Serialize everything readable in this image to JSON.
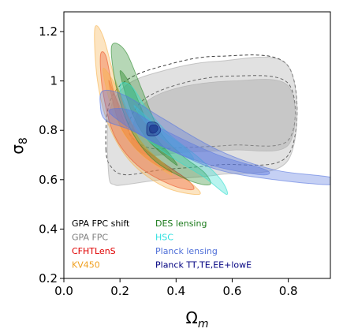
{
  "chart_data": {
    "type": "contour",
    "xlabel": "Ω",
    "xlabel_sub": "m",
    "ylabel": "σ",
    "ylabel_sub": "8",
    "xlim": [
      0.0,
      0.95
    ],
    "ylim": [
      0.2,
      1.28
    ],
    "xticks": [
      0.0,
      0.2,
      0.4,
      0.6,
      0.8
    ],
    "xtick_labels": [
      "0.0",
      "0.2",
      "0.4",
      "0.6",
      "0.8"
    ],
    "yticks": [
      0.2,
      0.4,
      0.6,
      0.8,
      1.0,
      1.2
    ],
    "ytick_labels": [
      "0.2",
      "0.4",
      "0.6",
      "0.8",
      "1",
      "1.2"
    ],
    "grid": false,
    "legend_position": "bottom-left",
    "series": [
      {
        "name": "GPA FPC shift",
        "color": "#000000",
        "style": "dashed",
        "outer": [
          [
            0.15,
            0.72
          ],
          [
            0.16,
            0.9
          ],
          [
            0.22,
            1.0
          ],
          [
            0.35,
            1.06
          ],
          [
            0.55,
            1.1
          ],
          [
            0.8,
            1.06
          ],
          [
            0.8,
            0.7
          ],
          [
            0.55,
            0.66
          ],
          [
            0.35,
            0.64
          ],
          [
            0.22,
            0.62
          ],
          [
            0.17,
            0.65
          ]
        ],
        "inner": [
          [
            0.23,
            0.8
          ],
          [
            0.28,
            0.92
          ],
          [
            0.42,
            0.99
          ],
          [
            0.6,
            1.02
          ],
          [
            0.8,
            0.99
          ],
          [
            0.8,
            0.76
          ],
          [
            0.6,
            0.74
          ],
          [
            0.42,
            0.73
          ],
          [
            0.3,
            0.73
          ]
        ]
      },
      {
        "name": "GPA FPC",
        "color": "#a8a8a8",
        "style": "filled",
        "outer": [
          [
            0.16,
            0.62
          ],
          [
            0.16,
            0.86
          ],
          [
            0.22,
            0.98
          ],
          [
            0.35,
            1.04
          ],
          [
            0.55,
            1.08
          ],
          [
            0.8,
            1.06
          ],
          [
            0.8,
            0.68
          ],
          [
            0.55,
            0.62
          ],
          [
            0.35,
            0.6
          ],
          [
            0.22,
            0.58
          ],
          [
            0.18,
            0.58
          ]
        ],
        "inner": [
          [
            0.24,
            0.76
          ],
          [
            0.28,
            0.9
          ],
          [
            0.4,
            0.97
          ],
          [
            0.6,
            1.0
          ],
          [
            0.8,
            0.98
          ],
          [
            0.8,
            0.74
          ],
          [
            0.6,
            0.72
          ],
          [
            0.42,
            0.71
          ],
          [
            0.3,
            0.7
          ]
        ]
      },
      {
        "name": "CFHTLenS",
        "color": "#e8261b",
        "style": "filled",
        "outer": [
          [
            0.13,
            1.1
          ],
          [
            0.14,
            0.95
          ],
          [
            0.18,
            0.78
          ],
          [
            0.26,
            0.66
          ],
          [
            0.38,
            0.58
          ],
          [
            0.46,
            0.56
          ],
          [
            0.44,
            0.6
          ],
          [
            0.34,
            0.68
          ],
          [
            0.24,
            0.78
          ],
          [
            0.18,
            0.95
          ],
          [
            0.15,
            1.1
          ]
        ],
        "inner": [
          [
            0.16,
            1.0
          ],
          [
            0.2,
            0.82
          ],
          [
            0.28,
            0.7
          ],
          [
            0.38,
            0.63
          ],
          [
            0.36,
            0.66
          ],
          [
            0.26,
            0.76
          ],
          [
            0.19,
            0.92
          ]
        ]
      },
      {
        "name": "KV450",
        "color": "#f7b24c",
        "style": "filled",
        "outer": [
          [
            0.11,
            1.21
          ],
          [
            0.12,
            1.0
          ],
          [
            0.16,
            0.82
          ],
          [
            0.24,
            0.67
          ],
          [
            0.36,
            0.57
          ],
          [
            0.48,
            0.54
          ],
          [
            0.46,
            0.58
          ],
          [
            0.36,
            0.66
          ],
          [
            0.26,
            0.78
          ],
          [
            0.19,
            0.98
          ],
          [
            0.14,
            1.18
          ]
        ],
        "inner": [
          [
            0.14,
            1.05
          ],
          [
            0.18,
            0.86
          ],
          [
            0.26,
            0.72
          ],
          [
            0.38,
            0.62
          ],
          [
            0.36,
            0.66
          ],
          [
            0.27,
            0.76
          ],
          [
            0.2,
            0.95
          ]
        ]
      },
      {
        "name": "DES lensing",
        "color": "#2e8b2e",
        "style": "filled",
        "outer": [
          [
            0.17,
            1.14
          ],
          [
            0.19,
            0.96
          ],
          [
            0.24,
            0.8
          ],
          [
            0.32,
            0.68
          ],
          [
            0.44,
            0.6
          ],
          [
            0.52,
            0.58
          ],
          [
            0.5,
            0.63
          ],
          [
            0.42,
            0.7
          ],
          [
            0.34,
            0.8
          ],
          [
            0.28,
            0.96
          ],
          [
            0.22,
            1.12
          ]
        ],
        "inner": [
          [
            0.2,
            1.04
          ],
          [
            0.24,
            0.88
          ],
          [
            0.3,
            0.76
          ],
          [
            0.4,
            0.66
          ],
          [
            0.38,
            0.7
          ],
          [
            0.31,
            0.8
          ],
          [
            0.25,
            0.96
          ]
        ]
      },
      {
        "name": "HSC",
        "color": "#33e0d0",
        "style": "filled",
        "outer": [
          [
            0.2,
            0.98
          ],
          [
            0.23,
            0.86
          ],
          [
            0.3,
            0.76
          ],
          [
            0.4,
            0.68
          ],
          [
            0.5,
            0.61
          ],
          [
            0.58,
            0.54
          ],
          [
            0.56,
            0.6
          ],
          [
            0.48,
            0.69
          ],
          [
            0.38,
            0.78
          ],
          [
            0.3,
            0.88
          ],
          [
            0.24,
            0.98
          ]
        ],
        "inner": [
          [
            0.25,
            0.9
          ],
          [
            0.3,
            0.82
          ],
          [
            0.38,
            0.74
          ],
          [
            0.46,
            0.68
          ],
          [
            0.44,
            0.72
          ],
          [
            0.36,
            0.79
          ],
          [
            0.29,
            0.86
          ]
        ]
      },
      {
        "name": "Planck lensing",
        "color": "#5a78e0",
        "style": "filled",
        "outer": [
          [
            0.13,
            0.9
          ],
          [
            0.14,
            0.96
          ],
          [
            0.22,
            0.94
          ],
          [
            0.35,
            0.85
          ],
          [
            0.55,
            0.72
          ],
          [
            0.75,
            0.64
          ],
          [
            0.95,
            0.61
          ],
          [
            0.95,
            0.58
          ],
          [
            0.75,
            0.6
          ],
          [
            0.55,
            0.64
          ],
          [
            0.38,
            0.72
          ],
          [
            0.24,
            0.8
          ],
          [
            0.15,
            0.84
          ]
        ],
        "inner": [
          [
            0.16,
            0.88
          ],
          [
            0.24,
            0.88
          ],
          [
            0.36,
            0.8
          ],
          [
            0.55,
            0.7
          ],
          [
            0.72,
            0.64
          ],
          [
            0.7,
            0.62
          ],
          [
            0.52,
            0.66
          ],
          [
            0.34,
            0.74
          ],
          [
            0.22,
            0.82
          ]
        ]
      },
      {
        "name": "Planck TT,TE,EE+lowE",
        "color": "#0a1a78",
        "style": "filled",
        "outer": [
          [
            0.295,
            0.8
          ],
          [
            0.3,
            0.83
          ],
          [
            0.33,
            0.83
          ],
          [
            0.345,
            0.8
          ],
          [
            0.33,
            0.78
          ],
          [
            0.3,
            0.78
          ]
        ],
        "inner": [
          [
            0.305,
            0.805
          ],
          [
            0.31,
            0.82
          ],
          [
            0.33,
            0.82
          ],
          [
            0.335,
            0.805
          ],
          [
            0.325,
            0.79
          ],
          [
            0.31,
            0.79
          ]
        ]
      }
    ]
  }
}
